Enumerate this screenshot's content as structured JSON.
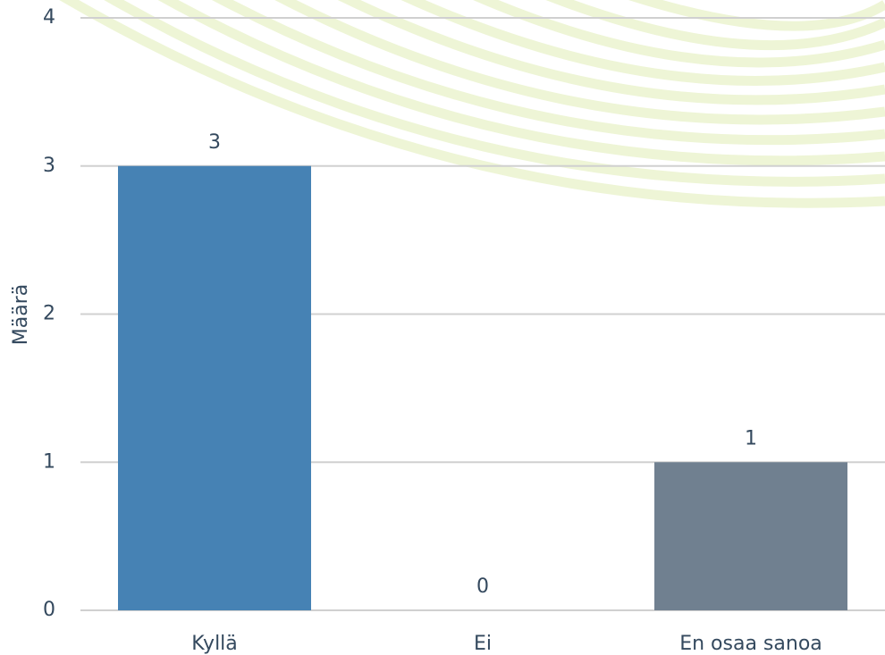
{
  "chart_data": {
    "type": "bar",
    "y_label": "Määrä",
    "categories": [
      "Kyllä",
      "Ei",
      "En osaa sanoa"
    ],
    "values": [
      3,
      0,
      1
    ],
    "colors": [
      "#4682b4",
      null,
      "#708090"
    ],
    "ylim": [
      0,
      4
    ],
    "yticks": [
      0,
      1,
      2,
      3,
      4
    ],
    "grid": true
  }
}
